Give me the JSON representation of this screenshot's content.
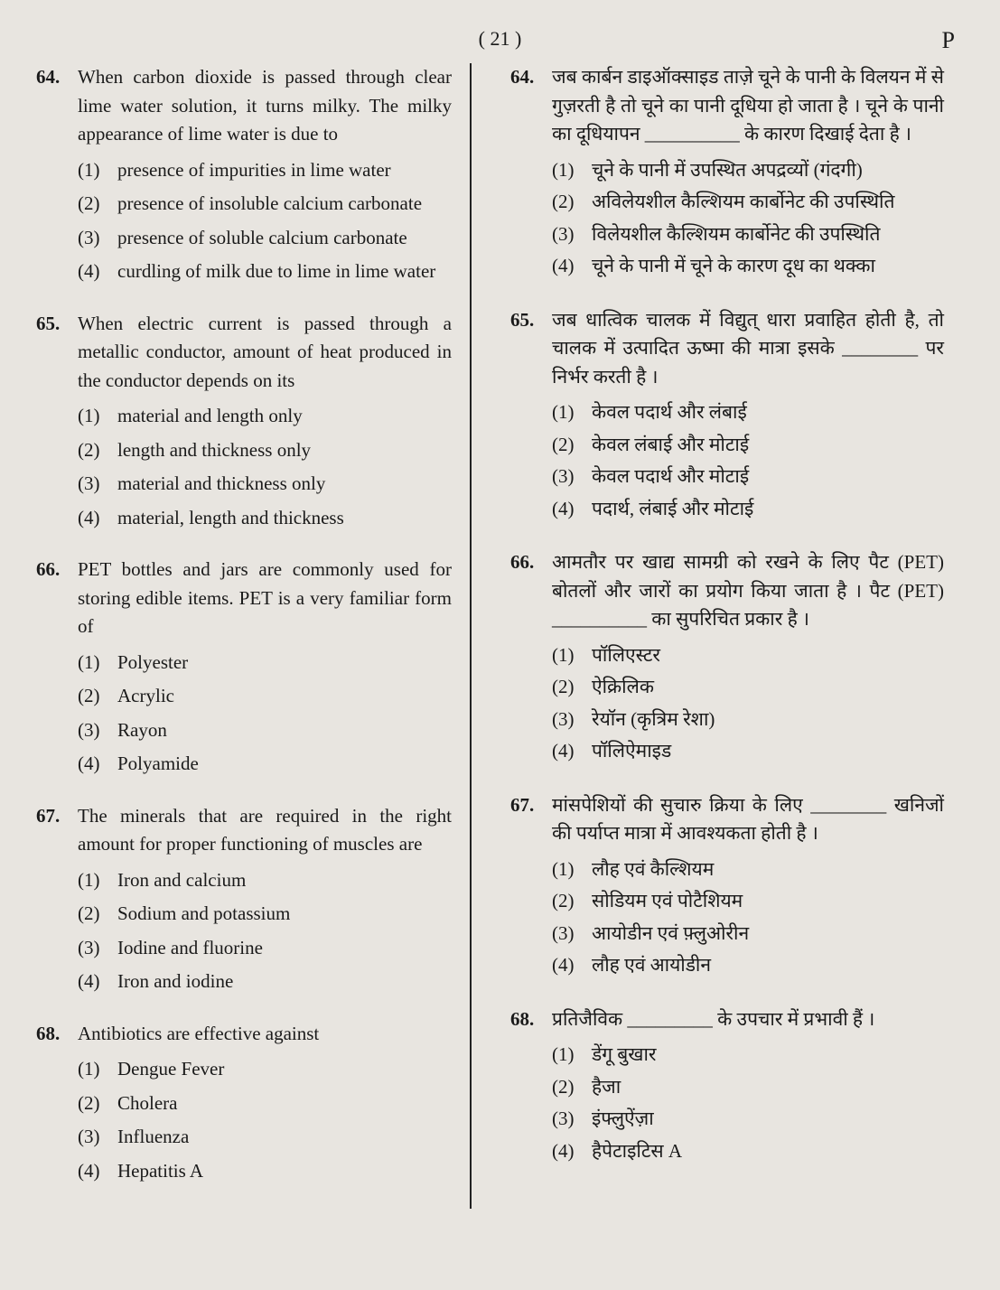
{
  "header": {
    "page_number": "( 21 )",
    "page_letter": "P"
  },
  "left": {
    "q64": {
      "num": "64.",
      "text": "When carbon dioxide is passed through clear lime water solution, it turns milky. The milky appearance of lime water is due to",
      "o1": "(1)",
      "t1": "presence of impurities in lime water",
      "o2": "(2)",
      "t2": "presence of insoluble calcium carbonate",
      "o3": "(3)",
      "t3": "presence of soluble calcium carbonate",
      "o4": "(4)",
      "t4": "curdling of milk due to lime in lime water"
    },
    "q65": {
      "num": "65.",
      "text": "When electric current is passed through a metallic conductor, amount of heat produced in the conductor depends on its",
      "o1": "(1)",
      "t1": "material and length only",
      "o2": "(2)",
      "t2": "length and thickness only",
      "o3": "(3)",
      "t3": "material and thickness only",
      "o4": "(4)",
      "t4": "material, length and thickness"
    },
    "q66": {
      "num": "66.",
      "text": "PET bottles and jars are commonly used for storing edible items. PET is a very familiar form of",
      "o1": "(1)",
      "t1": "Polyester",
      "o2": "(2)",
      "t2": "Acrylic",
      "o3": "(3)",
      "t3": "Rayon",
      "o4": "(4)",
      "t4": "Polyamide"
    },
    "q67": {
      "num": "67.",
      "text": "The minerals that are required in the right amount for proper functioning of muscles are",
      "o1": "(1)",
      "t1": "Iron and calcium",
      "o2": "(2)",
      "t2": "Sodium and potassium",
      "o3": "(3)",
      "t3": "Iodine and fluorine",
      "o4": "(4)",
      "t4": "Iron and iodine"
    },
    "q68": {
      "num": "68.",
      "text": "Antibiotics are effective against",
      "o1": "(1)",
      "t1": "Dengue Fever",
      "o2": "(2)",
      "t2": "Cholera",
      "o3": "(3)",
      "t3": "Influenza",
      "o4": "(4)",
      "t4": "Hepatitis A"
    }
  },
  "right": {
    "q64": {
      "num": "64.",
      "text": "जब कार्बन डाइऑक्साइड ताज़े चूने के पानी के विलयन में से गुज़रती है तो चूने का पानी दूधिया हो जाता है । चूने के पानी का दूधियापन __________ के कारण दिखाई देता है ।",
      "o1": "(1)",
      "t1": "चूने के पानी में उपस्थित अपद्रव्यों (गंदगी)",
      "o2": "(2)",
      "t2": "अविलेयशील कैल्शियम कार्बोनेट की उपस्थिति",
      "o3": "(3)",
      "t3": "विलेयशील कैल्शियम कार्बोनेट की उपस्थिति",
      "o4": "(4)",
      "t4": "चूने के पानी में चूने के कारण दूध का थक्का"
    },
    "q65": {
      "num": "65.",
      "text": "जब धात्विक चालक में विद्युत् धारा प्रवाहित होती है, तो चालक में उत्पादित ऊष्मा की मात्रा इसके ________ पर निर्भर करती है ।",
      "o1": "(1)",
      "t1": "केवल पदार्थ और लंबाई",
      "o2": "(2)",
      "t2": "केवल लंबाई और मोटाई",
      "o3": "(3)",
      "t3": "केवल पदार्थ और मोटाई",
      "o4": "(4)",
      "t4": "पदार्थ, लंबाई और मोटाई"
    },
    "q66": {
      "num": "66.",
      "text": "आमतौर पर खाद्य सामग्री को रखने के लिए पैट (PET) बोतलों और जारों का प्रयोग किया जाता है । पैट (PET) __________ का सुपरिचित प्रकार है ।",
      "o1": "(1)",
      "t1": "पॉलिएस्टर",
      "o2": "(2)",
      "t2": "ऐक्रिलिक",
      "o3": "(3)",
      "t3": "रेयॉन (कृत्रिम रेशा)",
      "o4": "(4)",
      "t4": "पॉलिऐमाइड"
    },
    "q67": {
      "num": "67.",
      "text": "मांसपेशियों की सुचारु क्रिया के लिए ________ खनिजों की पर्याप्त मात्रा में आवश्यकता होती है ।",
      "o1": "(1)",
      "t1": "लौह एवं कैल्शियम",
      "o2": "(2)",
      "t2": "सोडियम एवं पोटैशियम",
      "o3": "(3)",
      "t3": "आयोडीन एवं फ़्लुओरीन",
      "o4": "(4)",
      "t4": "लौह एवं आयोडीन"
    },
    "q68": {
      "num": "68.",
      "text": "प्रतिजैविक _________ के उपचार में प्रभावी हैं ।",
      "o1": "(1)",
      "t1": "डेंगू बुखार",
      "o2": "(2)",
      "t2": "हैजा",
      "o3": "(3)",
      "t3": "इंफ्लुऐंज़ा",
      "o4": "(4)",
      "t4": "हैपेटाइटिस A"
    }
  }
}
